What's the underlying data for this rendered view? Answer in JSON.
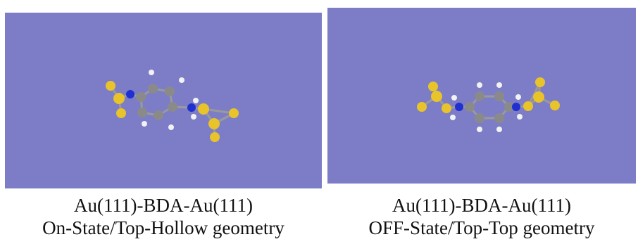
{
  "colors": {
    "background": "#7d7dc7",
    "gold": "#e8c42a",
    "carbon": "#8a8a8a",
    "nitrogen": "#1f2fd0",
    "hydrogen": "#f2f2f2"
  },
  "panels": [
    {
      "title": "Au(111)-BDA-Au(111)",
      "subtitle": "On-State/Top-Hollow geometry"
    },
    {
      "title": "Au(111)-BDA-Au(111)",
      "subtitle": "OFF-State/Top-Top geometry"
    }
  ]
}
